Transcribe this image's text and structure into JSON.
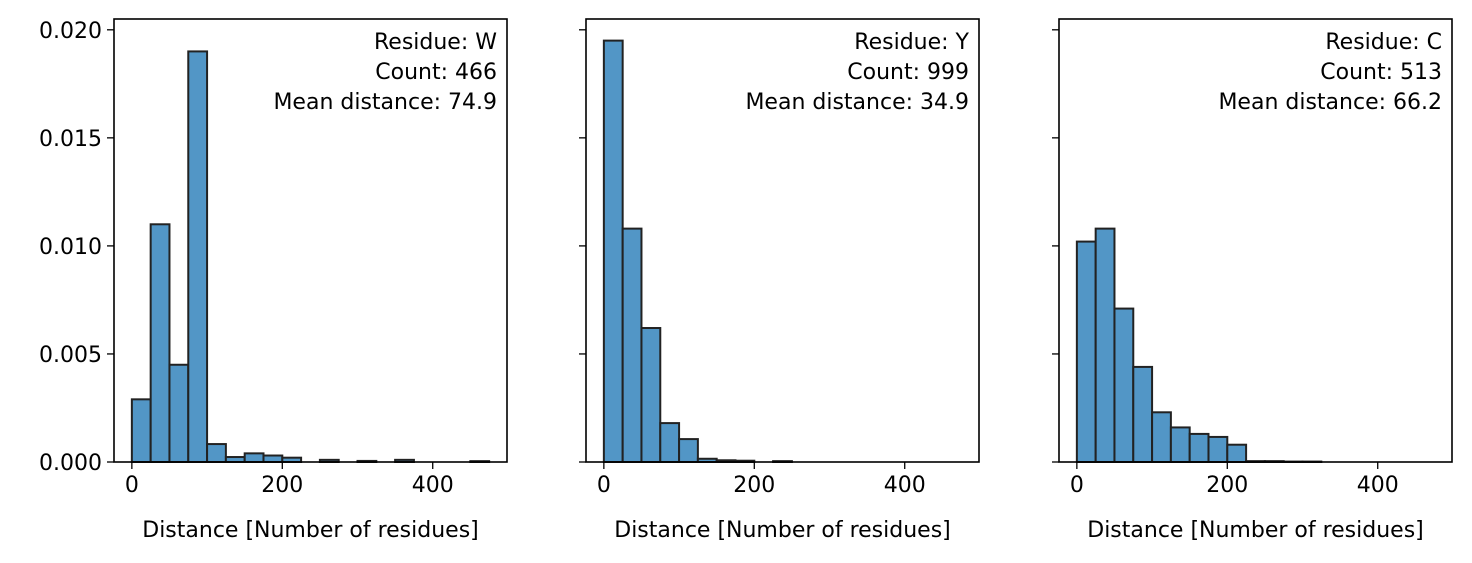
{
  "chart_data": [
    {
      "type": "histogram",
      "color": "#5296c6",
      "edgecolor": "#222222",
      "bins": [
        0,
        25,
        50,
        75,
        100,
        125,
        150,
        175,
        200,
        225,
        250,
        275,
        300,
        325,
        350,
        375,
        400,
        425,
        450,
        475
      ],
      "values": [
        0.0029,
        0.011,
        0.0045,
        0.019,
        0.00083,
        0.00023,
        0.0004,
        0.0003,
        0.0002,
        0,
        0.0001,
        0,
        5e-05,
        0,
        0.0001,
        0,
        0,
        0,
        4e-05
      ],
      "xlim": [
        -23.75,
        498.75
      ],
      "xticks": [
        0,
        200,
        400
      ],
      "ylim": [
        0,
        0.0205
      ],
      "yticks": [
        {
          "value": 0,
          "label": "0.000"
        },
        {
          "value": 0.005,
          "label": "0.005"
        },
        {
          "value": 0.01,
          "label": "0.010"
        },
        {
          "value": 0.015,
          "label": "0.015"
        },
        {
          "value": 0.02,
          "label": "0.020"
        }
      ],
      "xlabel": "Distance [Number of residues]",
      "annotation": [
        "Residue: W",
        "Count: 466",
        "Mean distance: 74.9"
      ]
    },
    {
      "type": "histogram",
      "color": "#5296c6",
      "edgecolor": "#222222",
      "bins": [
        0,
        25,
        50,
        75,
        100,
        125,
        150,
        175,
        200,
        225,
        250,
        275,
        300,
        325,
        350,
        375,
        400,
        425,
        450,
        475
      ],
      "values": [
        0.0195,
        0.0108,
        0.0062,
        0.0018,
        0.00106,
        0.00015,
        8e-05,
        6e-05,
        0,
        4e-05,
        0,
        0,
        0,
        0,
        0,
        0,
        0,
        0,
        0
      ],
      "xlim": [
        -23.75,
        498.75
      ],
      "xticks": [
        0,
        200,
        400
      ],
      "ylim": [
        0,
        0.0205
      ],
      "xlabel": "Distance [Number of residues]",
      "annotation": [
        "Residue: Y",
        "Count: 999",
        "Mean distance: 34.9"
      ]
    },
    {
      "type": "histogram",
      "color": "#5296c6",
      "edgecolor": "#222222",
      "bins": [
        0,
        25,
        50,
        75,
        100,
        125,
        150,
        175,
        200,
        225,
        250,
        275,
        300,
        325,
        350,
        375,
        400,
        425,
        450,
        475
      ],
      "values": [
        0.0102,
        0.0108,
        0.0071,
        0.0044,
        0.0023,
        0.0016,
        0.0013,
        0.00116,
        0.0008,
        4e-05,
        4e-05,
        2e-05,
        2e-05,
        0,
        0,
        0,
        0,
        0,
        0
      ],
      "xlim": [
        -23.75,
        498.75
      ],
      "xticks": [
        0,
        200,
        400
      ],
      "ylim": [
        0,
        0.0205
      ],
      "xlabel": "Distance [Number of residues]",
      "annotation": [
        "Residue: C",
        "Count: 513",
        "Mean distance: 66.2"
      ]
    }
  ]
}
